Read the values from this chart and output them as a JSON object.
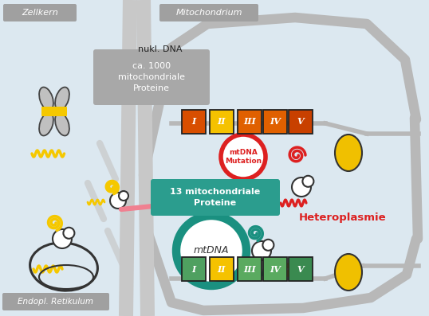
{
  "bg_color": "#dce8f0",
  "colors": {
    "bg": "#dce8f0",
    "gray_label_bg": "#a0a0a0",
    "white": "#ffffff",
    "orange_I": "#d84e00",
    "orange_II": "#f5c200",
    "orange_III": "#e06000",
    "orange_IV": "#e06000",
    "orange_V": "#c84000",
    "green_I": "#4fa060",
    "green_II": "#f5c200",
    "green_III": "#5aaa60",
    "green_IV": "#5aaa60",
    "green_V": "#3a8a50",
    "teal_label": "#2b9d8e",
    "gray_box": "#a8a8a8",
    "yellow": "#f5c800",
    "teal": "#1a9080",
    "red": "#dd2020",
    "pink": "#f08090",
    "gold": "#f0c000",
    "membrane": "#b8b8b8",
    "cell_wall": "#c8c8c8",
    "chr_fill": "#c0c0c0",
    "chr_stroke": "#444444",
    "dark": "#333333"
  },
  "labels": {
    "zellkern": "Zellkern",
    "mitochondrium": "Mitochondrium",
    "nukl_dna": "nukl. DNA",
    "ca1000": "ca. 1000\nmitochondriale\nProteine",
    "mtdna_mutation": "mtDNA\nMutation",
    "heteroplasmie": "Heteroplasmie",
    "mit13": "13 mitochondriale\nProteine",
    "mtdna": "mtDNA",
    "endopl": "Endopl. Retikulum"
  }
}
